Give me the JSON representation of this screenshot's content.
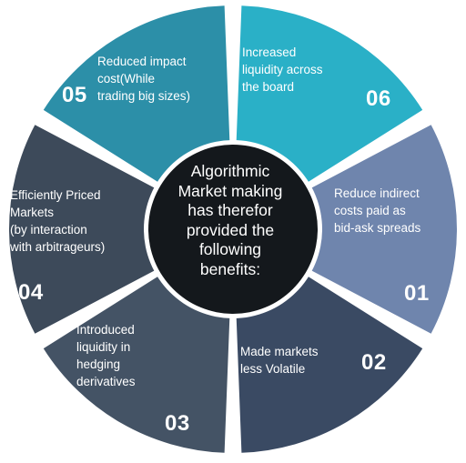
{
  "colors": {
    "seg_01": "#6f85ad",
    "seg_02": "#3a4a63",
    "seg_03": "#445365",
    "seg_04": "#3d4a5a",
    "seg_05": "#2c8fa8",
    "seg_06": "#2ab0c7",
    "center": "#14181c",
    "center_ring": "#ffffff"
  },
  "center": {
    "text": "Algorithmic\nMarket making\nhas therefor\nprovided the\nfollowing\nbenefits:"
  },
  "segments": [
    {
      "number": "01",
      "text": "Reduce indirect\ncosts paid as\nbid-ask spreads"
    },
    {
      "number": "02",
      "text": "Made markets\nless Volatile"
    },
    {
      "number": "03",
      "text": "Introduced\nliquidity in\nhedging\nderivatives"
    },
    {
      "number": "04",
      "text": "Efficiently Priced\nMarkets\n(by interaction\nwith arbitrageurs)"
    },
    {
      "number": "05",
      "text": "Reduced impact\ncost(While\ntrading big sizes)"
    },
    {
      "number": "06",
      "text": "Increased\nliquidity across\nthe board"
    }
  ]
}
